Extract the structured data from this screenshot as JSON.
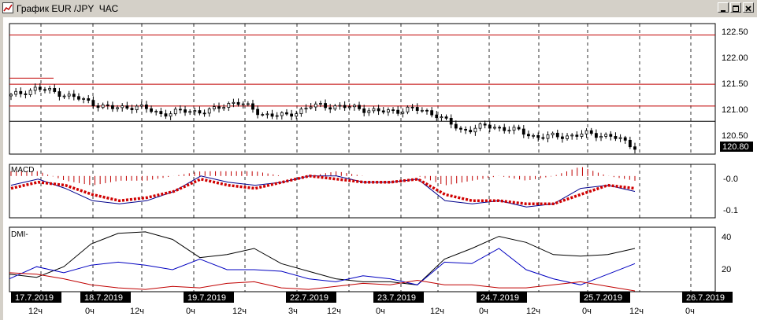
{
  "window": {
    "title": "График EUR /JPY  ЧАС",
    "minimize_icon": "minimize-icon",
    "maximize_icon": "maximize-icon",
    "close_icon": "close-icon"
  },
  "colors": {
    "candle": "#000000",
    "level_lines": "#c00000",
    "macd_histogram": "#c00000",
    "macd_signal": "#d00000",
    "macd_line": "#00008b",
    "dmi_adx": "#000000",
    "dmi_plus": "#0000c0",
    "dmi_minus": "#c00000",
    "grid": "#000000",
    "date_label_bg": "#000000",
    "date_label_text": "#ffffff"
  },
  "price_panel": {
    "ticks": [
      "122.50",
      "122.00",
      "121.50",
      "121.00",
      "120.50"
    ],
    "current_price": "120.80",
    "levels": [
      122.5,
      121.53,
      121.1,
      120.8
    ],
    "short_level": 121.65
  },
  "macd_panel": {
    "label": "MACD",
    "ticks": [
      "-0.0",
      "-0.1"
    ]
  },
  "dmi_panel": {
    "label": "DMI-",
    "ticks": [
      "40",
      "20"
    ]
  },
  "time_axis": {
    "dates": [
      "17.7.2019",
      "18.7.2019",
      "19.7.2019",
      "22.7.2019",
      "23.7.2019",
      "24.7.2019",
      "25.7.2019",
      "26.7.2019"
    ],
    "hour_marks": [
      "12ч",
      "0ч",
      "12ч",
      "0ч",
      "12ч",
      "3ч",
      "12ч",
      "0ч",
      "12ч",
      "0ч",
      "12ч",
      "0ч",
      "12ч",
      "0ч"
    ]
  },
  "chart_data": {
    "type": "line",
    "instrument": "EUR /JPY",
    "timeframe": "ЧАС",
    "price": {
      "x": [
        "17.7 06ч",
        "17.7 12ч",
        "17.7 18ч",
        "18.7 00ч",
        "18.7 06ч",
        "18.7 12ч",
        "18.7 18ч",
        "19.7 00ч",
        "19.7 06ч",
        "19.7 12ч",
        "19.7 18ч",
        "22.7 03ч",
        "22.7 09ч",
        "22.7 15ч",
        "22.7 21ч",
        "23.7 03ч",
        "23.7 09ч",
        "23.7 15ч",
        "23.7 21ч",
        "24.7 03ч",
        "24.7 09ч",
        "24.7 15ч",
        "24.7 21ч",
        "25.7 03ч",
        "25.7 09ч",
        "25.7 15ч"
      ],
      "close": [
        121.3,
        121.45,
        121.35,
        121.2,
        121.05,
        121.1,
        120.95,
        121.0,
        121.0,
        121.2,
        120.95,
        120.9,
        121.1,
        121.1,
        121.05,
        120.98,
        121.05,
        120.95,
        120.62,
        120.7,
        120.65,
        120.5,
        120.5,
        120.55,
        120.52,
        120.3
      ],
      "ylim": [
        120.2,
        122.6
      ],
      "current": 120.8,
      "levels": [
        122.5,
        121.53,
        121.1,
        120.8
      ]
    },
    "macd": {
      "line": [
        -0.03,
        -0.01,
        -0.04,
        -0.08,
        -0.09,
        -0.08,
        -0.05,
        0.0,
        -0.02,
        -0.03,
        -0.02,
        0.0,
        0.0,
        -0.02,
        -0.02,
        -0.01,
        -0.08,
        -0.09,
        -0.08,
        -0.1,
        -0.09,
        -0.04,
        -0.03,
        -0.05
      ],
      "signal": [
        -0.04,
        -0.02,
        -0.03,
        -0.06,
        -0.08,
        -0.07,
        -0.05,
        -0.01,
        -0.03,
        -0.04,
        -0.02,
        0.0,
        -0.01,
        -0.02,
        -0.02,
        -0.01,
        -0.06,
        -0.08,
        -0.08,
        -0.09,
        -0.09,
        -0.06,
        -0.03,
        -0.04
      ],
      "ylim": [
        -0.13,
        0.03
      ]
    },
    "dmi": {
      "adx": [
        15,
        13,
        20,
        35,
        42,
        43,
        38,
        26,
        28,
        32,
        22,
        17,
        12,
        10,
        10,
        8,
        25,
        32,
        40,
        36,
        28,
        27,
        28,
        32
      ],
      "plus_di": [
        12,
        20,
        16,
        21,
        23,
        21,
        18,
        25,
        18,
        18,
        17,
        12,
        10,
        14,
        12,
        8,
        23,
        22,
        32,
        18,
        12,
        8,
        15,
        22
      ],
      "minus_di": [
        16,
        15,
        12,
        8,
        6,
        5,
        7,
        6,
        9,
        10,
        6,
        5,
        7,
        9,
        8,
        11,
        8,
        8,
        6,
        6,
        8,
        10,
        7,
        4
      ],
      "ylim": [
        4,
        45
      ]
    }
  }
}
